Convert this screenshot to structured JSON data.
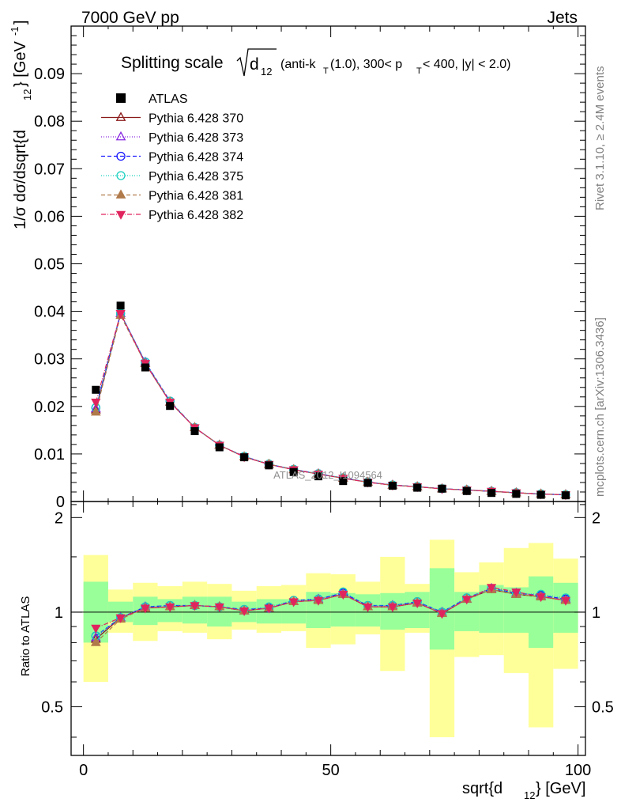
{
  "header": {
    "left": "7000 GeV pp",
    "right": "Jets"
  },
  "side_labels": {
    "rivet": "Rivet 3.1.10, ≥ 2.4M events",
    "mcplots": "mcplots.cern.ch [arXiv:1306.3436]"
  },
  "plot_title": {
    "main": "Splitting scale",
    "sqrt_arg": "d",
    "sqrt_sub": "12",
    "details": "(anti-k",
    "details_sub": "T",
    "details_rest": "(1.0), 300< p",
    "details_sub2": "T",
    "details_end": " < 400, |y| < 2.0)"
  },
  "watermark": "ATLAS_2012_I1094564",
  "legend": [
    {
      "name": "ATLAS",
      "color": "#000000",
      "marker": "square-filled",
      "dash": "none"
    },
    {
      "name": "Pythia 6.428 370",
      "color": "#8b1a1a",
      "marker": "triangle-open",
      "dash": "solid"
    },
    {
      "name": "Pythia 6.428 373",
      "color": "#8a2be2",
      "marker": "triangle-open",
      "dash": "1,2"
    },
    {
      "name": "Pythia 6.428 374",
      "color": "#1a1aff",
      "marker": "circle-open",
      "dash": "5,3"
    },
    {
      "name": "Pythia 6.428 375",
      "color": "#18d0c0",
      "marker": "circle-open",
      "dash": "1,2"
    },
    {
      "name": "Pythia 6.428 381",
      "color": "#b07a4a",
      "marker": "triangle-filled",
      "dash": "5,3"
    },
    {
      "name": "Pythia 6.428 382",
      "color": "#e0245e",
      "marker": "triangle-down-filled",
      "dash": "6,2,1,2"
    }
  ],
  "chart_data": {
    "type": "scatter",
    "xlabel": "sqrt{d",
    "xlabel_sub": "12",
    "xlabel_end": "} [GeV]",
    "ylabel": "1/σ dσ/dsqrt{d",
    "ylabel_sub": "12",
    "ylabel_end": "} [GeV",
    "ylabel_sup": "-1",
    "ylabel_close": "]",
    "ratio_ylabel": "Ratio to ATLAS",
    "xlim": [
      -2.5,
      101.5
    ],
    "ylim": [
      0,
      0.1
    ],
    "ratio_ylim": [
      0.35,
      2.25
    ],
    "x_ticks": [
      "0",
      "50",
      "100"
    ],
    "y_ticks": [
      "0",
      "0.01",
      "0.02",
      "0.03",
      "0.04",
      "0.05",
      "0.06",
      "0.07",
      "0.08",
      "0.09"
    ],
    "ratio_ticks": [
      "0.5",
      "1",
      "2"
    ],
    "x": [
      2.5,
      7.5,
      12.5,
      17.5,
      22.5,
      27.5,
      32.5,
      37.5,
      42.5,
      47.5,
      52.5,
      57.5,
      62.5,
      67.5,
      72.5,
      77.5,
      82.5,
      87.5,
      92.5,
      97.5
    ],
    "data": [
      0.0235,
      0.0412,
      0.0282,
      0.0201,
      0.0148,
      0.0114,
      0.0093,
      0.0076,
      0.0062,
      0.0053,
      0.0043,
      0.0039,
      0.0033,
      0.0029,
      0.0027,
      0.0022,
      0.0018,
      0.0016,
      0.0014,
      0.0013
    ],
    "band_inner": [
      [
        0.8,
        1.25
      ],
      [
        0.93,
        1.08
      ],
      [
        0.91,
        1.12
      ],
      [
        0.93,
        1.1
      ],
      [
        0.92,
        1.12
      ],
      [
        0.9,
        1.12
      ],
      [
        0.93,
        1.08
      ],
      [
        0.92,
        1.1
      ],
      [
        0.92,
        1.1
      ],
      [
        0.89,
        1.16
      ],
      [
        0.9,
        1.15
      ],
      [
        0.9,
        1.14
      ],
      [
        0.88,
        1.15
      ],
      [
        0.89,
        1.16
      ],
      [
        0.76,
        1.38
      ],
      [
        0.87,
        1.16
      ],
      [
        0.86,
        1.22
      ],
      [
        0.86,
        1.2
      ],
      [
        0.77,
        1.3
      ],
      [
        0.86,
        1.24
      ]
    ],
    "band_outer": [
      [
        0.6,
        1.52
      ],
      [
        0.86,
        1.18
      ],
      [
        0.81,
        1.24
      ],
      [
        0.87,
        1.21
      ],
      [
        0.86,
        1.25
      ],
      [
        0.82,
        1.23
      ],
      [
        0.88,
        1.17
      ],
      [
        0.86,
        1.21
      ],
      [
        0.87,
        1.22
      ],
      [
        0.77,
        1.33
      ],
      [
        0.79,
        1.32
      ],
      [
        0.85,
        1.25
      ],
      [
        0.65,
        1.5
      ],
      [
        0.86,
        1.23
      ],
      [
        0.4,
        1.7
      ],
      [
        0.72,
        1.34
      ],
      [
        0.73,
        1.44
      ],
      [
        0.64,
        1.6
      ],
      [
        0.43,
        1.66
      ],
      [
        0.66,
        1.48
      ]
    ],
    "series": [
      {
        "name": "Pythia 6.428 370",
        "ratio": [
          0.82,
          0.96,
          1.03,
          1.04,
          1.05,
          1.04,
          1.01,
          1.03,
          1.08,
          1.09,
          1.14,
          1.04,
          1.04,
          1.07,
          0.99,
          1.1,
          1.18,
          1.14,
          1.12,
          1.09
        ]
      },
      {
        "name": "Pythia 6.428 373",
        "ratio": [
          0.83,
          0.96,
          1.04,
          1.04,
          1.05,
          1.04,
          1.01,
          1.03,
          1.08,
          1.1,
          1.15,
          1.04,
          1.05,
          1.07,
          1.0,
          1.1,
          1.19,
          1.15,
          1.13,
          1.1
        ]
      },
      {
        "name": "Pythia 6.428 374",
        "ratio": [
          0.84,
          0.96,
          1.04,
          1.05,
          1.05,
          1.04,
          1.02,
          1.03,
          1.09,
          1.1,
          1.15,
          1.05,
          1.05,
          1.08,
          1.0,
          1.11,
          1.19,
          1.15,
          1.13,
          1.1
        ]
      },
      {
        "name": "Pythia 6.428 375",
        "ratio": [
          0.84,
          0.96,
          1.04,
          1.05,
          1.05,
          1.04,
          1.02,
          1.04,
          1.09,
          1.1,
          1.16,
          1.05,
          1.05,
          1.08,
          1.0,
          1.11,
          1.19,
          1.15,
          1.14,
          1.11
        ]
      },
      {
        "name": "Pythia 6.428 381",
        "ratio": [
          0.8,
          0.95,
          1.03,
          1.04,
          1.05,
          1.04,
          1.01,
          1.03,
          1.08,
          1.09,
          1.14,
          1.04,
          1.04,
          1.07,
          0.99,
          1.1,
          1.18,
          1.14,
          1.12,
          1.09
        ]
      },
      {
        "name": "Pythia 6.428 382",
        "ratio": [
          0.89,
          0.96,
          1.03,
          1.04,
          1.05,
          1.04,
          1.01,
          1.03,
          1.08,
          1.09,
          1.14,
          1.04,
          1.04,
          1.07,
          0.99,
          1.1,
          1.2,
          1.16,
          1.12,
          1.09
        ]
      }
    ]
  }
}
